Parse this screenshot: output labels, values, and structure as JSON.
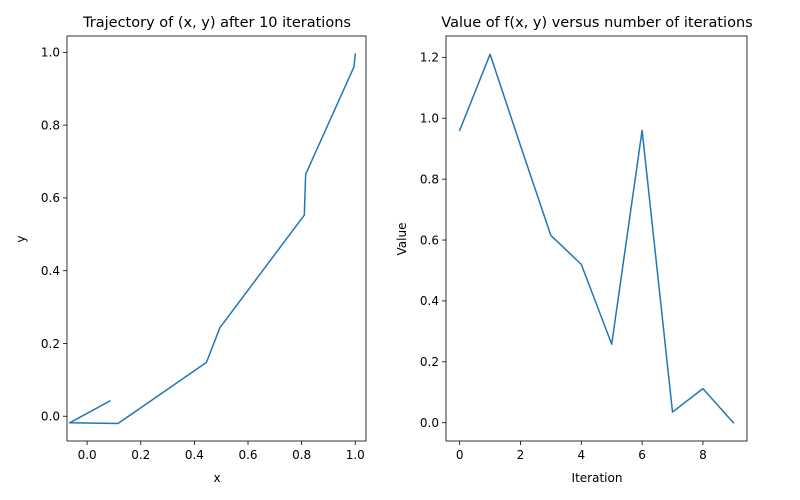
{
  "chart_data": [
    {
      "type": "line",
      "title": "Trajectory of (x, y) after 10 iterations",
      "xlabel": "x",
      "ylabel": "y",
      "xlim": [
        -0.075,
        1.04
      ],
      "ylim": [
        -0.068,
        1.045
      ],
      "xticks": [
        0.0,
        0.2,
        0.4,
        0.6,
        0.8,
        1.0
      ],
      "xtick_labels": [
        "0.0",
        "0.2",
        "0.4",
        "0.6",
        "0.8",
        "1.0"
      ],
      "yticks": [
        0.0,
        0.2,
        0.4,
        0.6,
        0.8,
        1.0
      ],
      "ytick_labels": [
        "0.0",
        "0.2",
        "0.4",
        "0.6",
        "0.8",
        "1.0"
      ],
      "color": "#1f77b4",
      "grid": false,
      "series": [
        {
          "x": [
            1.0,
            0.995,
            0.815,
            0.81,
            0.495,
            0.445,
            0.115,
            -0.065,
            0.085
          ],
          "y": [
            0.995,
            0.96,
            0.665,
            0.553,
            0.243,
            0.148,
            -0.02,
            -0.018,
            0.042
          ]
        }
      ]
    },
    {
      "type": "line",
      "title": "Value of f(x, y) versus number of iterations",
      "xlabel": "Iteration",
      "ylabel": "Value",
      "xlim": [
        -0.45,
        9.45
      ],
      "ylim": [
        -0.06,
        1.27
      ],
      "xticks": [
        0,
        2,
        4,
        6,
        8
      ],
      "xtick_labels": [
        "0",
        "2",
        "4",
        "6",
        "8"
      ],
      "yticks": [
        0.0,
        0.2,
        0.4,
        0.6,
        0.8,
        1.0,
        1.2
      ],
      "ytick_labels": [
        "0.0",
        "0.2",
        "0.4",
        "0.6",
        "0.8",
        "1.0",
        "1.2"
      ],
      "color": "#1f77b4",
      "grid": false,
      "series": [
        {
          "x": [
            0,
            1,
            2,
            3,
            4,
            5,
            6,
            7,
            8,
            9
          ],
          "y": [
            0.96,
            1.21,
            0.91,
            0.615,
            0.52,
            0.258,
            0.96,
            0.035,
            0.112,
            0.0
          ]
        }
      ]
    }
  ]
}
